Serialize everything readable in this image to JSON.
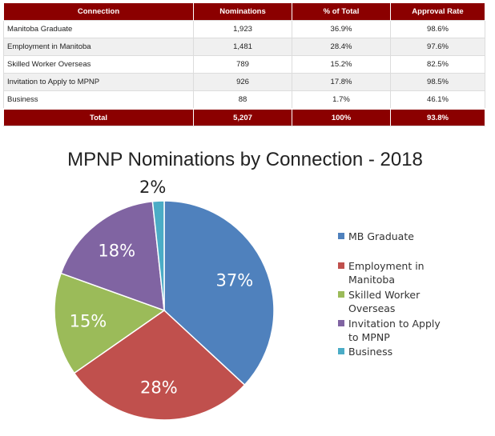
{
  "table": {
    "headers": [
      "Connection",
      "Nominations",
      "% of Total",
      "Approval Rate"
    ],
    "rows": [
      [
        "Manitoba Graduate",
        "1,923",
        "36.9%",
        "98.6%"
      ],
      [
        "Employment in Manitoba",
        "1,481",
        "28.4%",
        "97.6%"
      ],
      [
        "Skilled Worker Overseas",
        "789",
        "15.2%",
        "82.5%"
      ],
      [
        "Invitation to Apply to MPNP",
        "926",
        "17.8%",
        "98.5%"
      ],
      [
        "Business",
        "88",
        "1.7%",
        "46.1%"
      ]
    ],
    "total": [
      "Total",
      "5,207",
      "100%",
      "93.8%"
    ],
    "header_color": "#8b0000"
  },
  "chart_data": {
    "type": "pie",
    "title": "MPNP Nominations by Connection - 2018",
    "categories": [
      "MB Graduate",
      "Employment in Manitoba",
      "Skilled Worker Overseas",
      "Invitation to Apply to MPNP",
      "Business"
    ],
    "legend_lines": [
      [
        "MB Graduate"
      ],
      [
        "Employment in",
        "Manitoba"
      ],
      [
        "Skilled Worker",
        "Overseas"
      ],
      [
        "Invitation to Apply",
        "to MPNP"
      ],
      [
        "Business"
      ]
    ],
    "values": [
      36.9,
      28.4,
      15.2,
      17.8,
      1.7
    ],
    "labels": [
      "37%",
      "28%",
      "15%",
      "18%",
      "2%"
    ],
    "colors": [
      "#4f81bd",
      "#c0504d",
      "#9bbb59",
      "#8064a2",
      "#4bacc6"
    ],
    "legend": "right"
  }
}
